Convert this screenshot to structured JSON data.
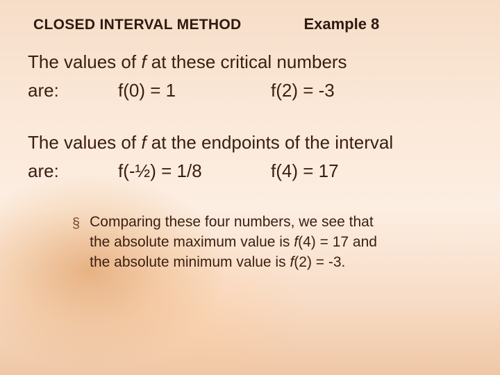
{
  "colors": {
    "text": "#3a1e10",
    "title": "#2e1a0e",
    "bullet": "#7a4a2a",
    "bg_top": "#f6ddc8",
    "bg_mid": "#fceee2",
    "bg_bottom": "#efc7a6"
  },
  "title": {
    "left": "CLOSED INTERVAL METHOD",
    "right": "Example 8"
  },
  "body": {
    "line1_pre": "The values of ",
    "line1_f": "f",
    "line1_post": " at these critical numbers",
    "are": "are:",
    "crit": {
      "v1_f": "f",
      "v1_rest": "(0) = 1",
      "v2_f": "f",
      "v2_rest": "(2) = -3"
    },
    "line2_pre": "The values of ",
    "line2_f": "f",
    "line2_post": " at the endpoints of the interval",
    "end": {
      "v1_f": "f",
      "v1_rest": "(-½) = 1/8",
      "v2_f": "f",
      "v2_rest": "(4) = 17"
    }
  },
  "bullet": {
    "mark": "§",
    "t1": "Comparing these four numbers, we see that",
    "t2a": "the absolute maximum value is ",
    "t2f": "f",
    "t2b": "(4) = 17 and",
    "t3a": "the absolute minimum value is ",
    "t3f": "f",
    "t3b": "(2) = -3."
  }
}
